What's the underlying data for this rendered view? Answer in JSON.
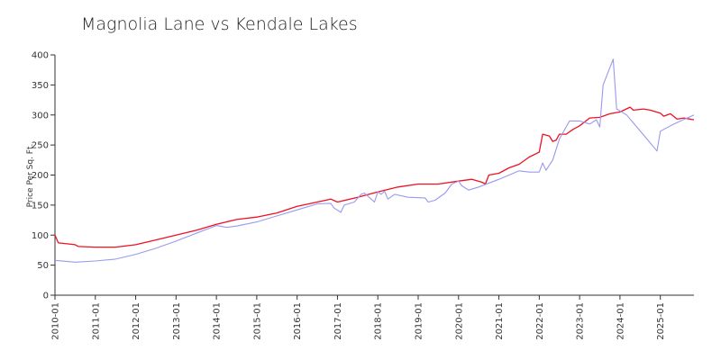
{
  "chart_data": {
    "type": "line",
    "title": "Magnolia Lane vs Kendale Lakes",
    "xlabel": "",
    "ylabel": "Price Per Sq. Ft.",
    "ylim": [
      0,
      400
    ],
    "grid": false,
    "y_ticks": [
      "0",
      "50",
      "100",
      "150",
      "200",
      "250",
      "300",
      "350",
      "400"
    ],
    "x_ticks": [
      "2010-01",
      "2011-01",
      "2012-01",
      "2013-01",
      "2014-01",
      "2015-01",
      "2016-01",
      "2017-01",
      "2018-01",
      "2019-01",
      "2020-01",
      "2021-01",
      "2022-01",
      "2023-01",
      "2024-01",
      "2025-01"
    ],
    "x_range": [
      "2010-01",
      "2025-11"
    ],
    "series": [
      {
        "color": "#ee1122",
        "points": [
          [
            "2010-01",
            100
          ],
          [
            "2010-02",
            87
          ],
          [
            "2010-04",
            86
          ],
          [
            "2010-07",
            84
          ],
          [
            "2010-08",
            81
          ],
          [
            "2011-01",
            80
          ],
          [
            "2011-07",
            80
          ],
          [
            "2012-01",
            84
          ],
          [
            "2012-07",
            92
          ],
          [
            "2013-01",
            100
          ],
          [
            "2013-07",
            108
          ],
          [
            "2014-01",
            118
          ],
          [
            "2014-07",
            126
          ],
          [
            "2015-01",
            130
          ],
          [
            "2015-07",
            137
          ],
          [
            "2016-01",
            148
          ],
          [
            "2016-07",
            155
          ],
          [
            "2016-11",
            160
          ],
          [
            "2017-01",
            155
          ],
          [
            "2017-07",
            163
          ],
          [
            "2018-01",
            172
          ],
          [
            "2018-07",
            180
          ],
          [
            "2019-01",
            185
          ],
          [
            "2019-07",
            185
          ],
          [
            "2020-01",
            190
          ],
          [
            "2020-05",
            193
          ],
          [
            "2020-08",
            188
          ],
          [
            "2020-09",
            185
          ],
          [
            "2020-10",
            200
          ],
          [
            "2021-01",
            203
          ],
          [
            "2021-04",
            212
          ],
          [
            "2021-07",
            218
          ],
          [
            "2021-10",
            230
          ],
          [
            "2022-01",
            238
          ],
          [
            "2022-02",
            268
          ],
          [
            "2022-04",
            265
          ],
          [
            "2022-05",
            256
          ],
          [
            "2022-06",
            258
          ],
          [
            "2022-07",
            268
          ],
          [
            "2022-09",
            268
          ],
          [
            "2022-11",
            276
          ],
          [
            "2023-01",
            282
          ],
          [
            "2023-04",
            295
          ],
          [
            "2023-07",
            296
          ],
          [
            "2023-10",
            302
          ],
          [
            "2024-01",
            305
          ],
          [
            "2024-04",
            313
          ],
          [
            "2024-05",
            308
          ],
          [
            "2024-08",
            310
          ],
          [
            "2024-10",
            308
          ],
          [
            "2025-01",
            303
          ],
          [
            "2025-02",
            298
          ],
          [
            "2025-04",
            302
          ],
          [
            "2025-06",
            293
          ],
          [
            "2025-08",
            295
          ],
          [
            "2025-11",
            292
          ]
        ]
      },
      {
        "color": "#9999ee",
        "points": [
          [
            "2010-01",
            58
          ],
          [
            "2010-07",
            55
          ],
          [
            "2011-01",
            57
          ],
          [
            "2011-07",
            60
          ],
          [
            "2012-01",
            68
          ],
          [
            "2012-07",
            78
          ],
          [
            "2013-01",
            90
          ],
          [
            "2013-07",
            103
          ],
          [
            "2014-01",
            116
          ],
          [
            "2014-04",
            113
          ],
          [
            "2014-07",
            115
          ],
          [
            "2015-01",
            122
          ],
          [
            "2015-07",
            132
          ],
          [
            "2016-01",
            142
          ],
          [
            "2016-07",
            152
          ],
          [
            "2016-11",
            153
          ],
          [
            "2016-12",
            145
          ],
          [
            "2017-02",
            138
          ],
          [
            "2017-03",
            150
          ],
          [
            "2017-06",
            155
          ],
          [
            "2017-08",
            168
          ],
          [
            "2017-09",
            170
          ],
          [
            "2017-11",
            160
          ],
          [
            "2017-12",
            155
          ],
          [
            "2018-01",
            172
          ],
          [
            "2018-02",
            168
          ],
          [
            "2018-03",
            173
          ],
          [
            "2018-04",
            160
          ],
          [
            "2018-06",
            168
          ],
          [
            "2018-10",
            163
          ],
          [
            "2019-03",
            162
          ],
          [
            "2019-04",
            155
          ],
          [
            "2019-06",
            158
          ],
          [
            "2019-09",
            170
          ],
          [
            "2019-11",
            185
          ],
          [
            "2020-01",
            190
          ],
          [
            "2020-02",
            182
          ],
          [
            "2020-04",
            175
          ],
          [
            "2020-07",
            180
          ],
          [
            "2021-01",
            193
          ],
          [
            "2021-07",
            207
          ],
          [
            "2021-10",
            205
          ],
          [
            "2022-01",
            205
          ],
          [
            "2022-02",
            220
          ],
          [
            "2022-03",
            208
          ],
          [
            "2022-05",
            225
          ],
          [
            "2022-07",
            260
          ],
          [
            "2022-10",
            290
          ],
          [
            "2023-01",
            290
          ],
          [
            "2023-04",
            285
          ],
          [
            "2023-06",
            292
          ],
          [
            "2023-07",
            280
          ],
          [
            "2023-08",
            350
          ],
          [
            "2023-11",
            393
          ],
          [
            "2023-12",
            310
          ],
          [
            "2024-03",
            300
          ],
          [
            "2024-06",
            280
          ],
          [
            "2024-09",
            260
          ],
          [
            "2024-12",
            240
          ],
          [
            "2025-01",
            273
          ],
          [
            "2025-04",
            282
          ],
          [
            "2025-07",
            290
          ],
          [
            "2025-11",
            300
          ]
        ]
      }
    ]
  }
}
